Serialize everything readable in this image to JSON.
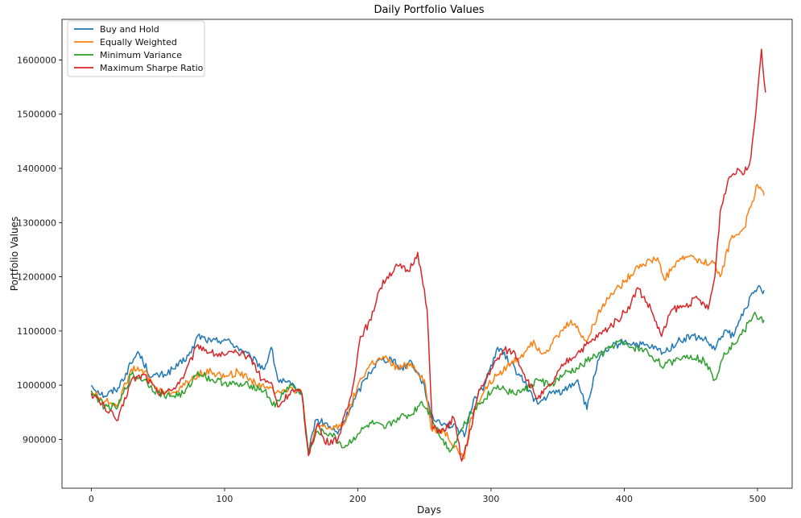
{
  "chart_data": {
    "type": "line",
    "title": "Daily Portfolio Values",
    "xlabel": "Days",
    "ylabel": "Portfolio Values",
    "xlim": [
      -22,
      526
    ],
    "ylim": [
      810000,
      1675000
    ],
    "x_ticks": [
      0,
      100,
      200,
      300,
      400,
      500
    ],
    "y_ticks": [
      900000,
      1000000,
      1100000,
      1200000,
      1300000,
      1400000,
      1500000,
      1600000
    ],
    "grid": false,
    "legend_position": "top-left",
    "series": [
      {
        "name": "Buy and Hold",
        "color": "#1f77b4",
        "points": [
          [
            0,
            1000000
          ],
          [
            10,
            980000
          ],
          [
            20,
            995000
          ],
          [
            30,
            1040000
          ],
          [
            35,
            1062000
          ],
          [
            45,
            1015000
          ],
          [
            55,
            1020000
          ],
          [
            65,
            1035000
          ],
          [
            75,
            1060000
          ],
          [
            80,
            1092000
          ],
          [
            90,
            1080000
          ],
          [
            100,
            1085000
          ],
          [
            110,
            1070000
          ],
          [
            120,
            1050000
          ],
          [
            130,
            1030000
          ],
          [
            135,
            1070000
          ],
          [
            140,
            1010000
          ],
          [
            150,
            1000000
          ],
          [
            158,
            985000
          ],
          [
            163,
            875000
          ],
          [
            168,
            935000
          ],
          [
            175,
            930000
          ],
          [
            185,
            910000
          ],
          [
            195,
            960000
          ],
          [
            205,
            1010000
          ],
          [
            215,
            1045000
          ],
          [
            225,
            1050000
          ],
          [
            232,
            1030000
          ],
          [
            240,
            1045000
          ],
          [
            250,
            1000000
          ],
          [
            255,
            940000
          ],
          [
            265,
            930000
          ],
          [
            275,
            920000
          ],
          [
            280,
            905000
          ],
          [
            287,
            975000
          ],
          [
            295,
            1000000
          ],
          [
            305,
            1070000
          ],
          [
            315,
            1040000
          ],
          [
            325,
            1005000
          ],
          [
            335,
            965000
          ],
          [
            345,
            985000
          ],
          [
            355,
            990000
          ],
          [
            365,
            1010000
          ],
          [
            372,
            955000
          ],
          [
            380,
            1045000
          ],
          [
            390,
            1070000
          ],
          [
            400,
            1080000
          ],
          [
            410,
            1075000
          ],
          [
            420,
            1070000
          ],
          [
            430,
            1060000
          ],
          [
            440,
            1080000
          ],
          [
            450,
            1090000
          ],
          [
            460,
            1085000
          ],
          [
            468,
            1065000
          ],
          [
            475,
            1100000
          ],
          [
            482,
            1090000
          ],
          [
            490,
            1140000
          ],
          [
            500,
            1180000
          ],
          [
            505,
            1175000
          ]
        ]
      },
      {
        "name": "Equally Weighted",
        "color": "#ff7f0e",
        "points": [
          [
            0,
            990000
          ],
          [
            10,
            970000
          ],
          [
            20,
            965000
          ],
          [
            30,
            1030000
          ],
          [
            40,
            1025000
          ],
          [
            50,
            990000
          ],
          [
            60,
            985000
          ],
          [
            70,
            1000000
          ],
          [
            80,
            1020000
          ],
          [
            90,
            1025000
          ],
          [
            100,
            1015000
          ],
          [
            110,
            1025000
          ],
          [
            120,
            1010000
          ],
          [
            130,
            995000
          ],
          [
            140,
            990000
          ],
          [
            150,
            995000
          ],
          [
            158,
            985000
          ],
          [
            163,
            875000
          ],
          [
            170,
            925000
          ],
          [
            180,
            920000
          ],
          [
            190,
            930000
          ],
          [
            200,
            1000000
          ],
          [
            210,
            1040000
          ],
          [
            220,
            1050000
          ],
          [
            230,
            1030000
          ],
          [
            240,
            1040000
          ],
          [
            250,
            1010000
          ],
          [
            255,
            920000
          ],
          [
            265,
            915000
          ],
          [
            275,
            880000
          ],
          [
            280,
            865000
          ],
          [
            285,
            940000
          ],
          [
            295,
            990000
          ],
          [
            305,
            1020000
          ],
          [
            315,
            1040000
          ],
          [
            325,
            1060000
          ],
          [
            330,
            1080000
          ],
          [
            340,
            1060000
          ],
          [
            350,
            1090000
          ],
          [
            360,
            1120000
          ],
          [
            372,
            1080000
          ],
          [
            380,
            1130000
          ],
          [
            390,
            1170000
          ],
          [
            400,
            1190000
          ],
          [
            410,
            1220000
          ],
          [
            420,
            1230000
          ],
          [
            425,
            1235000
          ],
          [
            430,
            1195000
          ],
          [
            440,
            1230000
          ],
          [
            450,
            1240000
          ],
          [
            458,
            1225000
          ],
          [
            466,
            1230000
          ],
          [
            472,
            1200000
          ],
          [
            480,
            1270000
          ],
          [
            490,
            1290000
          ],
          [
            500,
            1370000
          ],
          [
            505,
            1350000
          ]
        ]
      },
      {
        "name": "Minimum Variance",
        "color": "#2ca02c",
        "points": [
          [
            0,
            990000
          ],
          [
            10,
            960000
          ],
          [
            20,
            960000
          ],
          [
            30,
            1020000
          ],
          [
            40,
            1010000
          ],
          [
            50,
            985000
          ],
          [
            60,
            980000
          ],
          [
            70,
            985000
          ],
          [
            80,
            1025000
          ],
          [
            90,
            1010000
          ],
          [
            100,
            1005000
          ],
          [
            110,
            1000000
          ],
          [
            120,
            1000000
          ],
          [
            130,
            990000
          ],
          [
            138,
            960000
          ],
          [
            145,
            990000
          ],
          [
            150,
            1000000
          ],
          [
            158,
            985000
          ],
          [
            163,
            875000
          ],
          [
            170,
            915000
          ],
          [
            180,
            910000
          ],
          [
            190,
            885000
          ],
          [
            200,
            910000
          ],
          [
            210,
            930000
          ],
          [
            220,
            920000
          ],
          [
            230,
            940000
          ],
          [
            240,
            945000
          ],
          [
            248,
            970000
          ],
          [
            255,
            945000
          ],
          [
            263,
            900000
          ],
          [
            270,
            880000
          ],
          [
            278,
            920000
          ],
          [
            285,
            950000
          ],
          [
            295,
            975000
          ],
          [
            305,
            1000000
          ],
          [
            315,
            985000
          ],
          [
            325,
            990000
          ],
          [
            335,
            1010000
          ],
          [
            345,
            1000000
          ],
          [
            355,
            1020000
          ],
          [
            365,
            1030000
          ],
          [
            375,
            1050000
          ],
          [
            385,
            1060000
          ],
          [
            395,
            1080000
          ],
          [
            405,
            1070000
          ],
          [
            415,
            1065000
          ],
          [
            425,
            1045000
          ],
          [
            430,
            1035000
          ],
          [
            440,
            1050000
          ],
          [
            450,
            1055000
          ],
          [
            460,
            1045000
          ],
          [
            468,
            1010000
          ],
          [
            475,
            1060000
          ],
          [
            482,
            1075000
          ],
          [
            490,
            1100000
          ],
          [
            497,
            1130000
          ],
          [
            505,
            1120000
          ]
        ]
      },
      {
        "name": "Maximum Sharpe Ratio",
        "color": "#d62728",
        "points": [
          [
            0,
            985000
          ],
          [
            10,
            960000
          ],
          [
            20,
            935000
          ],
          [
            30,
            1010000
          ],
          [
            40,
            1020000
          ],
          [
            50,
            985000
          ],
          [
            60,
            990000
          ],
          [
            70,
            1020000
          ],
          [
            80,
            1075000
          ],
          [
            90,
            1060000
          ],
          [
            100,
            1055000
          ],
          [
            110,
            1060000
          ],
          [
            120,
            1050000
          ],
          [
            128,
            1010000
          ],
          [
            135,
            1005000
          ],
          [
            140,
            960000
          ],
          [
            150,
            990000
          ],
          [
            158,
            985000
          ],
          [
            163,
            870000
          ],
          [
            170,
            930000
          ],
          [
            175,
            895000
          ],
          [
            185,
            900000
          ],
          [
            195,
            980000
          ],
          [
            202,
            1090000
          ],
          [
            210,
            1120000
          ],
          [
            215,
            1170000
          ],
          [
            222,
            1200000
          ],
          [
            230,
            1220000
          ],
          [
            238,
            1210000
          ],
          [
            245,
            1245000
          ],
          [
            252,
            1140000
          ],
          [
            256,
            920000
          ],
          [
            265,
            915000
          ],
          [
            272,
            940000
          ],
          [
            278,
            860000
          ],
          [
            283,
            900000
          ],
          [
            290,
            980000
          ],
          [
            300,
            1030000
          ],
          [
            310,
            1065000
          ],
          [
            318,
            1060000
          ],
          [
            325,
            1020000
          ],
          [
            335,
            975000
          ],
          [
            345,
            1000000
          ],
          [
            355,
            1040000
          ],
          [
            365,
            1060000
          ],
          [
            375,
            1080000
          ],
          [
            385,
            1100000
          ],
          [
            395,
            1120000
          ],
          [
            405,
            1150000
          ],
          [
            410,
            1180000
          ],
          [
            420,
            1140000
          ],
          [
            428,
            1090000
          ],
          [
            436,
            1140000
          ],
          [
            445,
            1145000
          ],
          [
            455,
            1160000
          ],
          [
            463,
            1140000
          ],
          [
            468,
            1200000
          ],
          [
            472,
            1320000
          ],
          [
            478,
            1380000
          ],
          [
            485,
            1400000
          ],
          [
            490,
            1390000
          ],
          [
            495,
            1420000
          ],
          [
            500,
            1540000
          ],
          [
            503,
            1620000
          ],
          [
            506,
            1540000
          ]
        ]
      }
    ]
  }
}
